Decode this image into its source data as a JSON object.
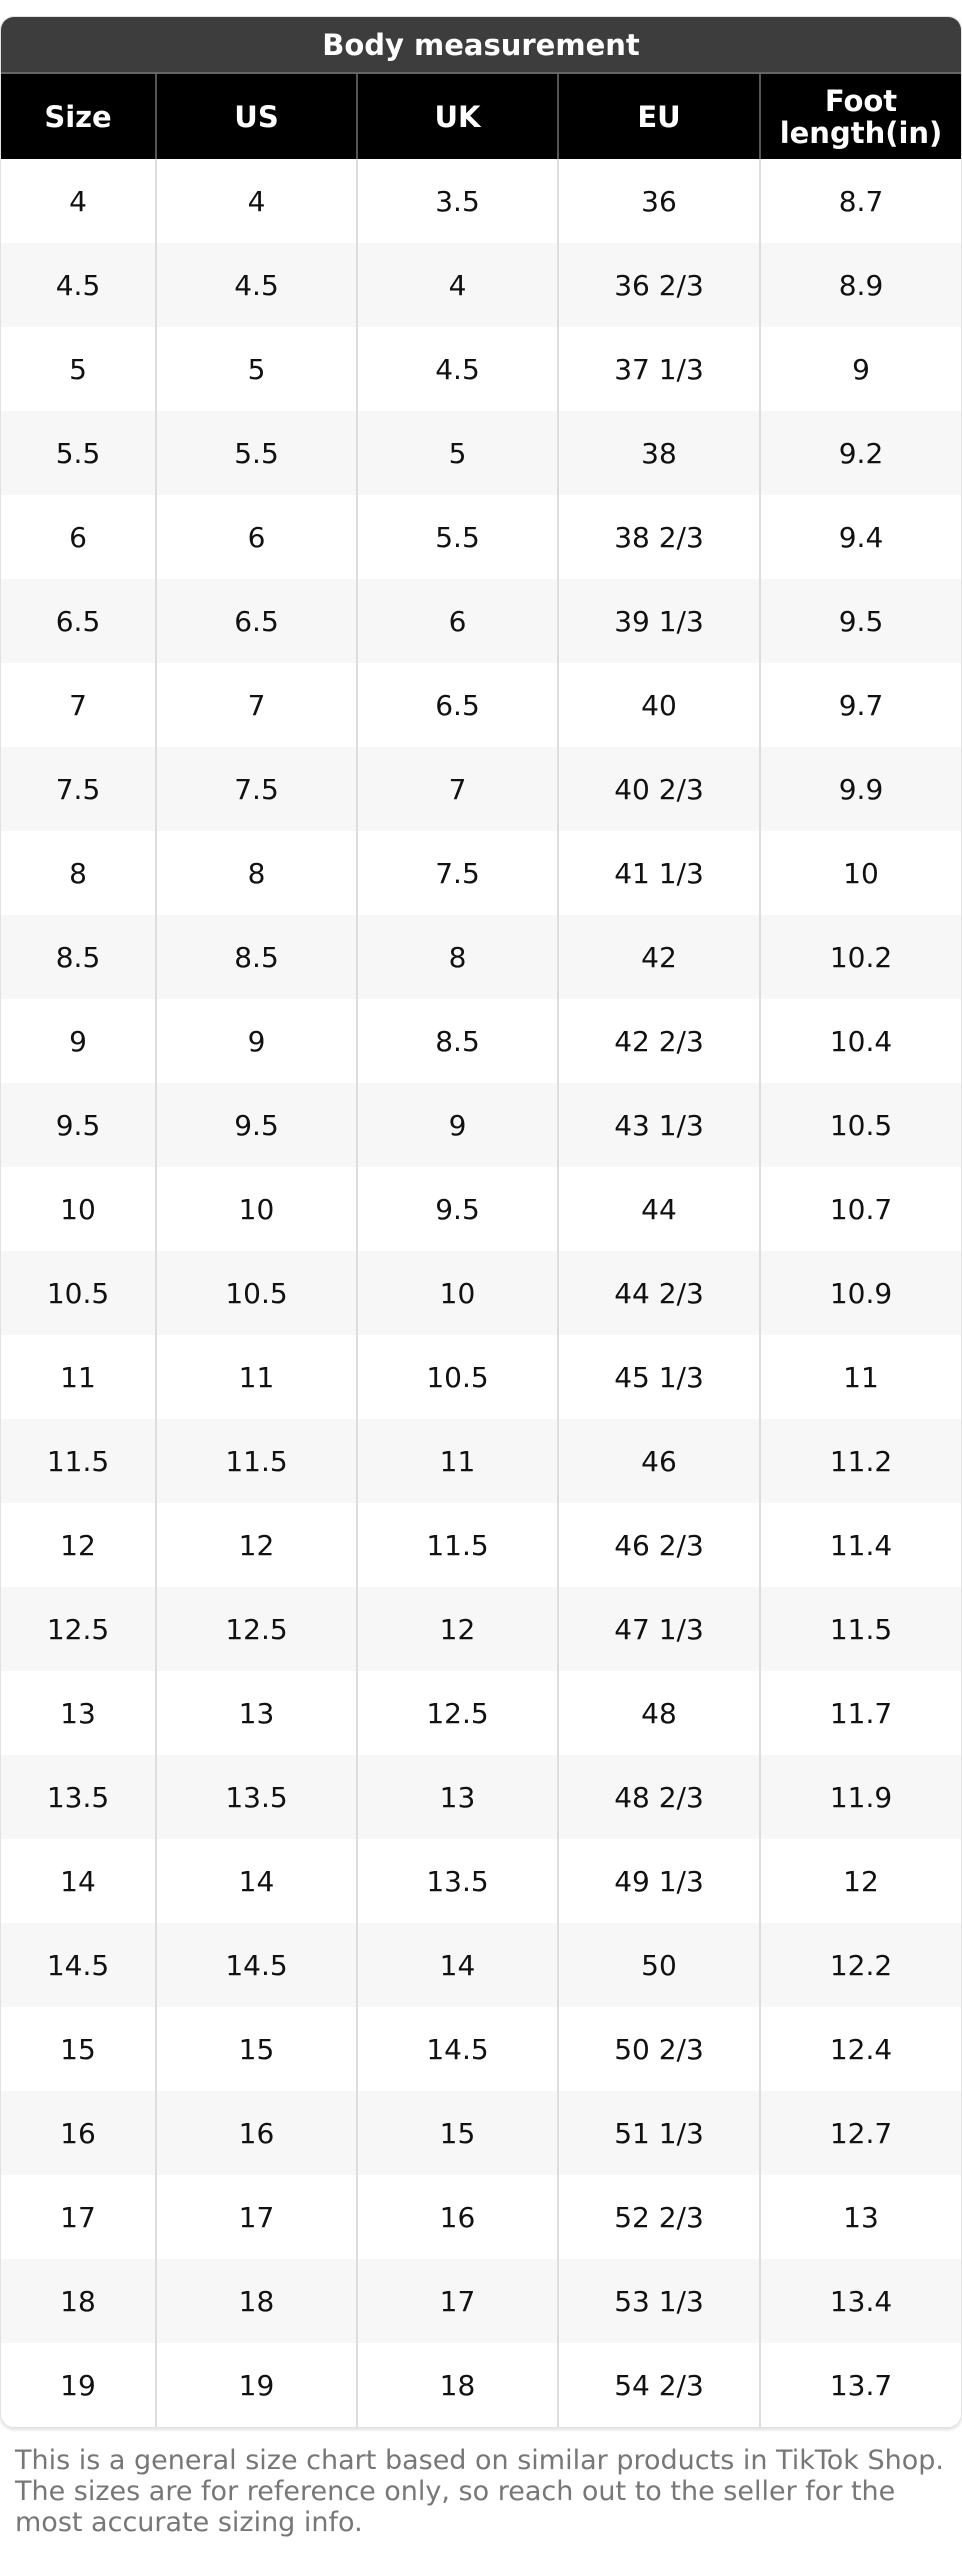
{
  "title": "Body measurement",
  "columns": [
    "Size",
    "US",
    "UK",
    "EU",
    "Foot length(in)"
  ],
  "rows": [
    [
      "4",
      "4",
      "3.5",
      "36",
      "8.7"
    ],
    [
      "4.5",
      "4.5",
      "4",
      "36 2/3",
      "8.9"
    ],
    [
      "5",
      "5",
      "4.5",
      "37 1/3",
      "9"
    ],
    [
      "5.5",
      "5.5",
      "5",
      "38",
      "9.2"
    ],
    [
      "6",
      "6",
      "5.5",
      "38 2/3",
      "9.4"
    ],
    [
      "6.5",
      "6.5",
      "6",
      "39 1/3",
      "9.5"
    ],
    [
      "7",
      "7",
      "6.5",
      "40",
      "9.7"
    ],
    [
      "7.5",
      "7.5",
      "7",
      "40 2/3",
      "9.9"
    ],
    [
      "8",
      "8",
      "7.5",
      "41 1/3",
      "10"
    ],
    [
      "8.5",
      "8.5",
      "8",
      "42",
      "10.2"
    ],
    [
      "9",
      "9",
      "8.5",
      "42 2/3",
      "10.4"
    ],
    [
      "9.5",
      "9.5",
      "9",
      "43 1/3",
      "10.5"
    ],
    [
      "10",
      "10",
      "9.5",
      "44",
      "10.7"
    ],
    [
      "10.5",
      "10.5",
      "10",
      "44 2/3",
      "10.9"
    ],
    [
      "11",
      "11",
      "10.5",
      "45 1/3",
      "11"
    ],
    [
      "11.5",
      "11.5",
      "11",
      "46",
      "11.2"
    ],
    [
      "12",
      "12",
      "11.5",
      "46 2/3",
      "11.4"
    ],
    [
      "12.5",
      "12.5",
      "12",
      "47 1/3",
      "11.5"
    ],
    [
      "13",
      "13",
      "12.5",
      "48",
      "11.7"
    ],
    [
      "13.5",
      "13.5",
      "13",
      "48 2/3",
      "11.9"
    ],
    [
      "14",
      "14",
      "13.5",
      "49 1/3",
      "12"
    ],
    [
      "14.5",
      "14.5",
      "14",
      "50",
      "12.2"
    ],
    [
      "15",
      "15",
      "14.5",
      "50 2/3",
      "12.4"
    ],
    [
      "16",
      "16",
      "15",
      "51 1/3",
      "12.7"
    ],
    [
      "17",
      "17",
      "16",
      "52 2/3",
      "13"
    ],
    [
      "18",
      "18",
      "17",
      "53 1/3",
      "13.4"
    ],
    [
      "19",
      "19",
      "18",
      "54 2/3",
      "13.7"
    ]
  ],
  "note": "This is a general size chart based on similar products in TikTok Shop. The sizes are for reference only, so reach out to the seller for the most accurate sizing info."
}
